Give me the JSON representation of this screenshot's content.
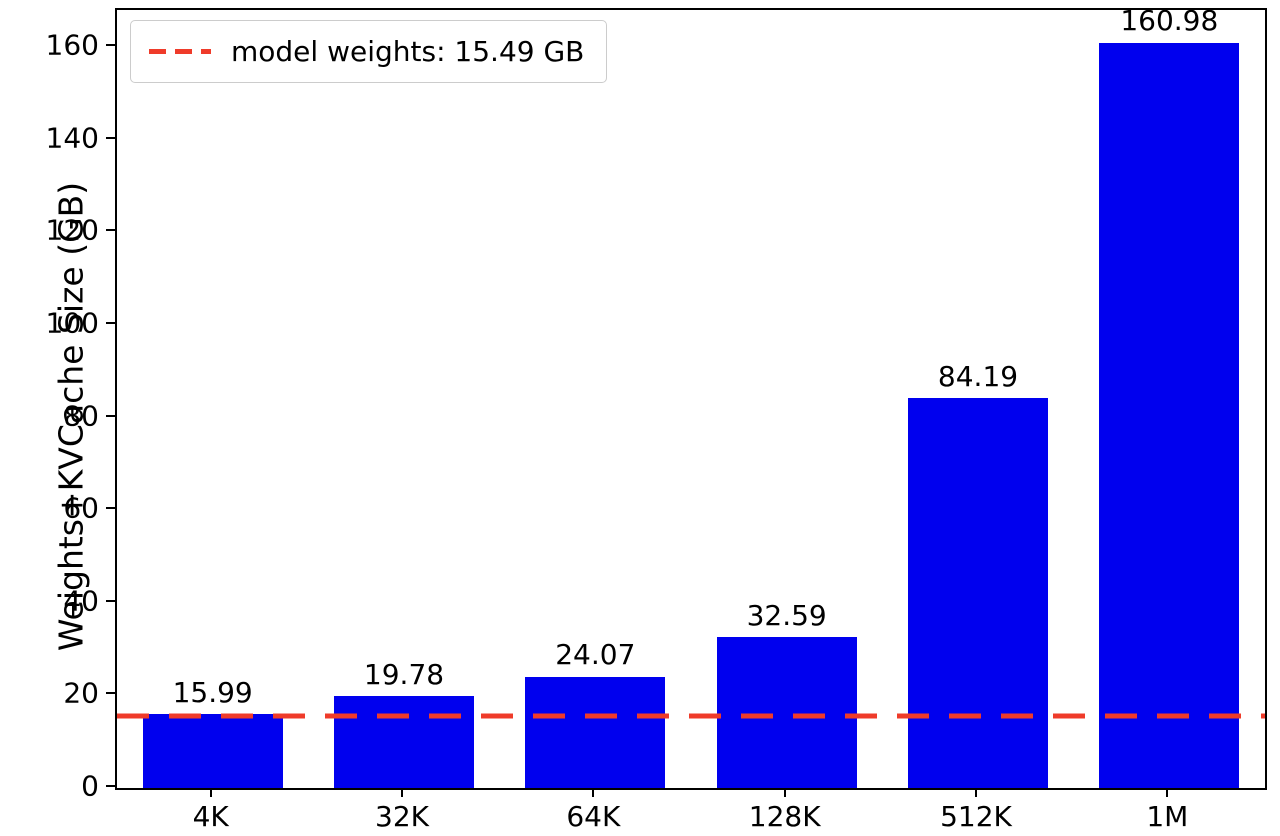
{
  "chart_data": {
    "type": "bar",
    "title": "",
    "xlabel": "",
    "ylabel": "Weights+KVCache Size (GB)",
    "categories": [
      "4K",
      "32K",
      "64K",
      "128K",
      "512K",
      "1M"
    ],
    "values": [
      15.99,
      19.78,
      24.07,
      32.59,
      84.19,
      160.98
    ],
    "value_labels": [
      "15.99",
      "19.78",
      "24.07",
      "32.59",
      "84.19",
      "160.98"
    ],
    "yticks": [
      0,
      20,
      40,
      60,
      80,
      100,
      120,
      140,
      160
    ],
    "ylim": [
      0,
      168
    ],
    "grid": false,
    "bar_color": "#0000ee",
    "axis_color": "#000000",
    "legend_position": "upper left",
    "hline": {
      "value": 15.49,
      "style": "dashed",
      "color": "#ef3b2a",
      "label": "model weights: 15.49 GB"
    }
  }
}
